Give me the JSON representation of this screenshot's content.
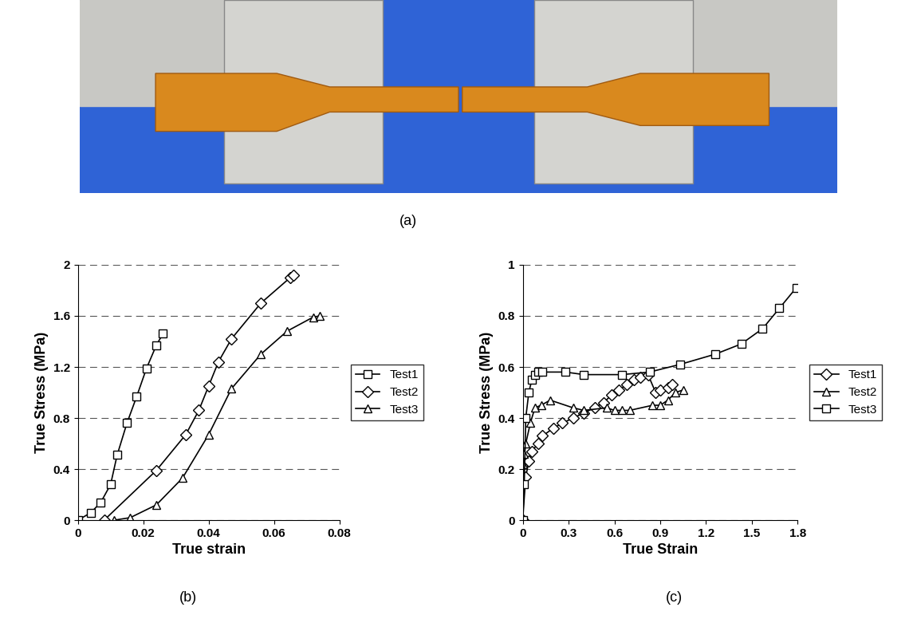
{
  "panel_a": {
    "caption": "(a)"
  },
  "chart_data": [
    {
      "type": "line",
      "caption": "(b)",
      "x_label": "True strain",
      "y_label": "True Stress (MPa)",
      "xlim": [
        0,
        0.08
      ],
      "xticks": [
        0,
        0.02,
        0.04,
        0.06,
        0.08
      ],
      "ylim": [
        0,
        2
      ],
      "yticks": [
        0,
        0.4,
        0.8,
        1.2,
        1.6,
        2
      ],
      "grid": "y",
      "legend": "right",
      "series": [
        {
          "name": "Test1",
          "color": "#000000",
          "marker": "square",
          "line_style": "solid",
          "x": [
            0,
            0.004,
            0.007,
            0.01,
            0.012,
            0.015,
            0.018,
            0.021,
            0.024,
            0.026
          ],
          "values": [
            0,
            0.06,
            0.14,
            0.28,
            0.51,
            0.76,
            0.97,
            1.19,
            1.37,
            1.46
          ]
        },
        {
          "name": "Test2",
          "color": "#000000",
          "marker": "diamond",
          "line_style": "solid",
          "x": [
            0.008,
            0.024,
            0.033,
            0.037,
            0.04,
            0.043,
            0.047,
            0.056,
            0.065,
            0.066
          ],
          "values": [
            0,
            0.39,
            0.67,
            0.86,
            1.05,
            1.24,
            1.42,
            1.7,
            1.9,
            1.92
          ]
        },
        {
          "name": "Test3",
          "color": "#000000",
          "marker": "triangle",
          "line_style": "solid",
          "x": [
            0.011,
            0.016,
            0.024,
            0.032,
            0.04,
            0.047,
            0.056,
            0.064,
            0.072,
            0.074
          ],
          "values": [
            0,
            0.02,
            0.12,
            0.33,
            0.67,
            1.03,
            1.3,
            1.48,
            1.59,
            1.6
          ]
        }
      ]
    },
    {
      "type": "line",
      "caption": "(c)",
      "x_label": "True Strain",
      "y_label": "True Stress (MPa)",
      "xlim": [
        0,
        1.8
      ],
      "xticks": [
        0,
        0.3,
        0.6,
        0.9,
        1.2,
        1.5,
        1.8
      ],
      "ylim": [
        0,
        1
      ],
      "yticks": [
        0,
        0.2,
        0.4,
        0.6,
        0.8,
        1
      ],
      "grid": "y",
      "legend": "right",
      "series": [
        {
          "name": "Test1",
          "color": "#000000",
          "marker": "diamond",
          "line_style": "solid",
          "x": [
            0,
            0.02,
            0.04,
            0.06,
            0.1,
            0.13,
            0.2,
            0.26,
            0.33,
            0.4,
            0.47,
            0.53,
            0.58,
            0.63,
            0.68,
            0.73,
            0.77,
            0.82,
            0.87,
            0.9,
            0.95,
            0.98
          ],
          "values": [
            0,
            0.17,
            0.23,
            0.27,
            0.3,
            0.33,
            0.36,
            0.38,
            0.4,
            0.42,
            0.44,
            0.46,
            0.49,
            0.51,
            0.53,
            0.55,
            0.56,
            0.57,
            0.5,
            0.51,
            0.52,
            0.53
          ]
        },
        {
          "name": "Test2",
          "color": "#000000",
          "marker": "triangle",
          "line_style": "solid",
          "x": [
            0,
            0.005,
            0.01,
            0.02,
            0.05,
            0.08,
            0.12,
            0.18,
            0.33,
            0.4,
            0.55,
            0.6,
            0.65,
            0.7,
            0.85,
            0.9,
            0.95,
            1.0,
            1.05
          ],
          "values": [
            0,
            0.22,
            0.26,
            0.3,
            0.38,
            0.44,
            0.45,
            0.47,
            0.44,
            0.43,
            0.44,
            0.43,
            0.43,
            0.43,
            0.45,
            0.45,
            0.47,
            0.5,
            0.51
          ]
        },
        {
          "name": "Test3",
          "color": "#000000",
          "marker": "square",
          "line_style": "solid",
          "x": [
            0,
            0.01,
            0.02,
            0.04,
            0.06,
            0.08,
            0.1,
            0.13,
            0.28,
            0.4,
            0.65,
            0.83,
            1.03,
            1.26,
            1.43,
            1.57,
            1.68,
            1.79
          ],
          "values": [
            0,
            0.14,
            0.4,
            0.5,
            0.55,
            0.57,
            0.58,
            0.58,
            0.58,
            0.57,
            0.57,
            0.58,
            0.61,
            0.65,
            0.69,
            0.75,
            0.83,
            0.91
          ]
        }
      ]
    }
  ]
}
